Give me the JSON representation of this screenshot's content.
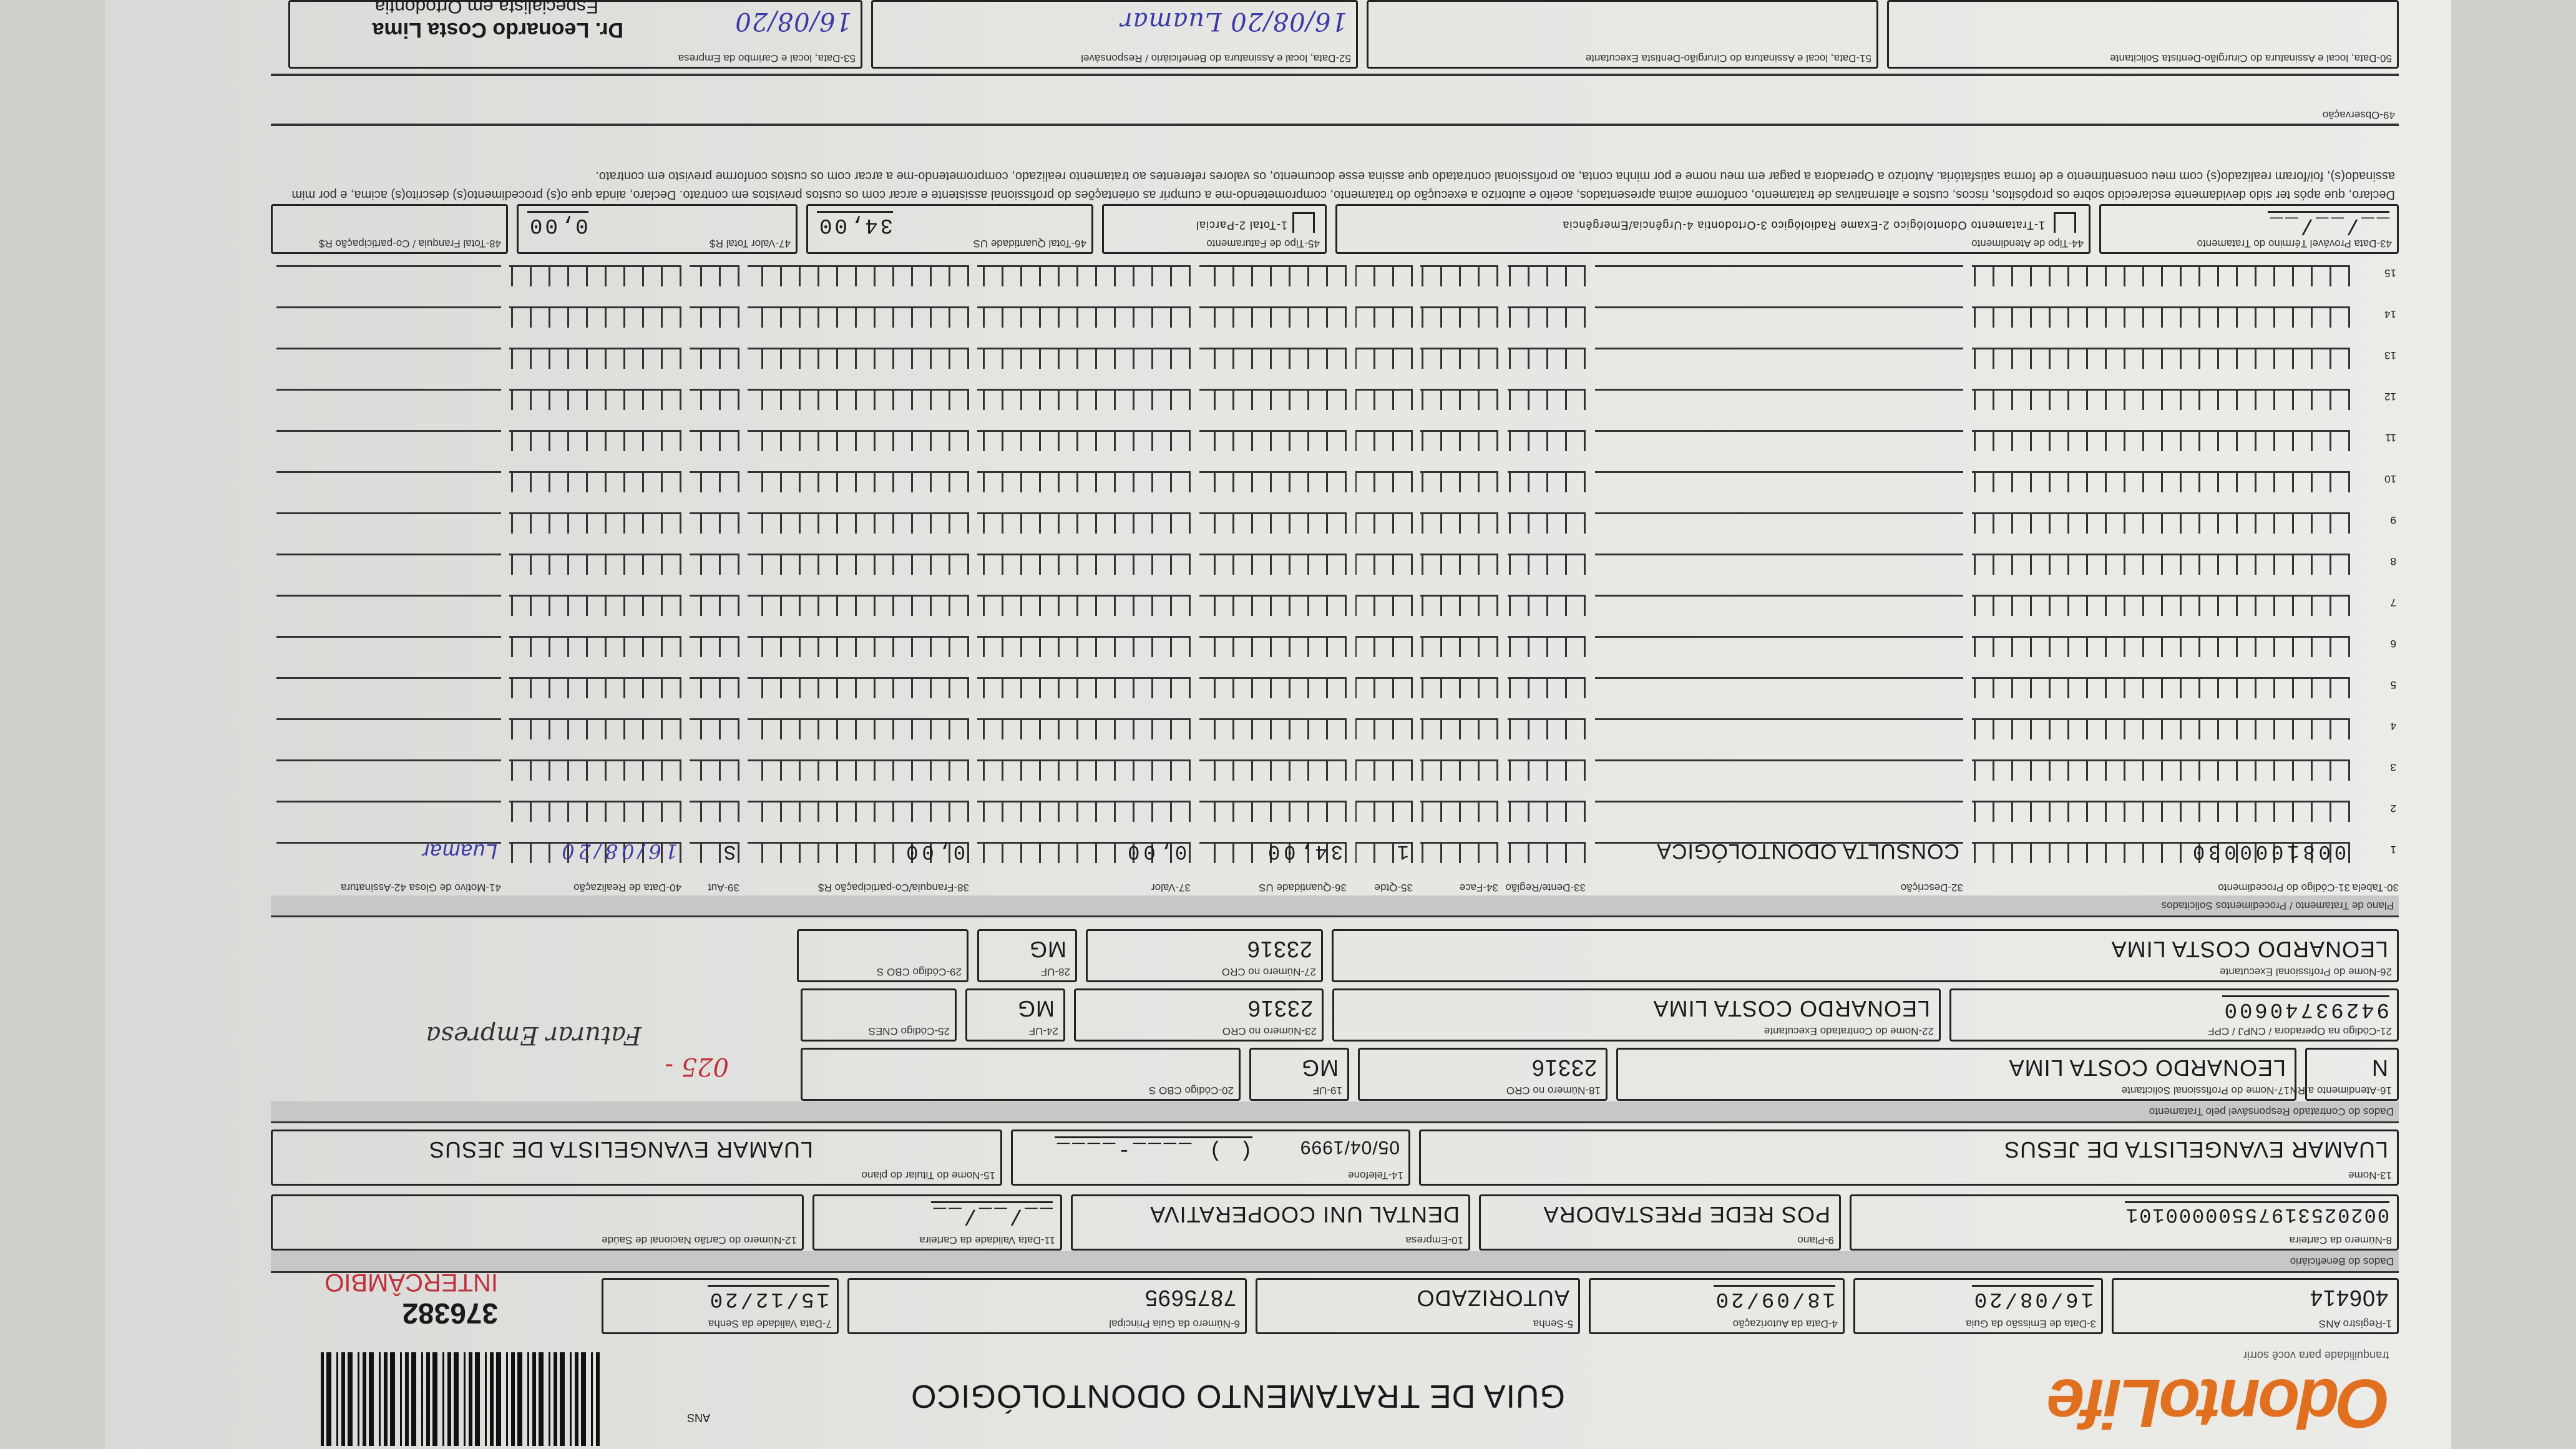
{
  "header": {
    "logo": "OdontoLife",
    "tagline": "tranquilidade para você sorrir",
    "title": "GUIA DE TRATAMENTO ODONTOLÓGICO",
    "ans_mark": "ANS",
    "guide_number": "376382",
    "intercambio": "INTERCÂMBIO",
    "brand_color": "#e0701f"
  },
  "guia": {
    "registro_ans": {
      "label": "1-Registro ANS",
      "value": "406414"
    },
    "data_emissao": {
      "label": "3-Data de Emissão da Guia",
      "value": "16/08/20"
    },
    "data_autorizacao": {
      "label": "4-Data da Autorização",
      "value": "18/09/20"
    },
    "senha": {
      "label": "5-Senha",
      "value": "AUTORIZADO"
    },
    "guia_principal": {
      "label": "6-Número da Guia Principal",
      "value": "7875695"
    },
    "validade_senha": {
      "label": "7-Data Validade da Senha",
      "value": "15/12/20"
    }
  },
  "beneficiario": {
    "section": "Dados do Beneficiário",
    "carteira": {
      "label": "8-Número da Carteira",
      "value": "00202531975500000101"
    },
    "plano": {
      "label": "9-Plano",
      "value": "POS REDE PRESTADORA"
    },
    "empresa": {
      "label": "10-Empresa",
      "value": "DENTAL UNI COOPERATIVA"
    },
    "validade_carteira": {
      "label": "11-Data Validade da Carteira",
      "value": "__/__/__"
    },
    "cns": {
      "label": "12-Número do Cartão Nacional de Saúde",
      "value": ""
    },
    "nome": {
      "label": "13-Nome",
      "value": "LUAMAR EVANGELISTA DE JESUS"
    },
    "nascimento": {
      "value": "05/04/1999"
    },
    "telefone": {
      "label": "14-Telefone",
      "value": "(  )  ____-____"
    },
    "titular": {
      "label": "15-Nome do Titular do plano",
      "value": "LUAMAR EVANGELISTA DE JESUS"
    }
  },
  "contratado": {
    "section": "Dados do Contratado Responsável pelo Tratamento",
    "rn": {
      "label": "16-Atendimento a RN",
      "value": "N"
    },
    "solicitante": {
      "label": "17-Nome do Profissional Solicitante",
      "value": "LEONARDO COSTA LIMA"
    },
    "cro_sol": {
      "label": "18-Número no CRO",
      "value": "23316"
    },
    "uf_sol": {
      "label": "19-UF",
      "value": "MG"
    },
    "cbo_sol": {
      "label": "20-Código CBO S",
      "value": ""
    },
    "codigo_operadora": {
      "label": "21-Código na Operadora / CNPJ / CPF",
      "value": "94293740600"
    },
    "contratado_exec": {
      "label": "22-Nome do Contratado Executante",
      "value": "LEONARDO COSTA LIMA"
    },
    "cro_contr": {
      "label": "23-Número no CRO",
      "value": "23316"
    },
    "uf_contr": {
      "label": "24-UF",
      "value": "MG"
    },
    "cnes": {
      "label": "25-Código CNES",
      "value": ""
    },
    "executante": {
      "label": "26-Nome do Profissional Executante",
      "value": "LEONARDO COSTA LIMA"
    },
    "cro_exec": {
      "label": "27-Número no CRO",
      "value": "23316"
    },
    "uf_exec": {
      "label": "28-UF",
      "value": "MG"
    },
    "cbo_exec": {
      "label": "29-Código CBO S",
      "value": ""
    },
    "handwritten_code": "025 -",
    "handwritten_note": "Faturar Empresa"
  },
  "plano": {
    "section": "Plano de Tratamento / Procedimentos Solicitados",
    "columns": [
      "30-Tabela",
      "31-Código do Procedimento",
      "32-Descrição",
      "33-Dente/Região",
      "34-Face",
      "35-Qtde",
      "36-Quantidade US",
      "37-Valor",
      "38-Franquia/Co-participação R$",
      "39-Aut",
      "40-Data de Realização",
      "41-Motivo de Glosa  42-Assinatura"
    ],
    "rows": [
      {
        "n": "1",
        "tabela": "",
        "codigo": "0081000030",
        "descricao": "CONSULTA ODONTOLÓGICA",
        "dente": "",
        "face": "",
        "qtde": "1",
        "us": "34,00",
        "valor": "0,00",
        "franquia": "0,00",
        "aut": "S",
        "data": "16/08/20",
        "assinatura": "Luamar"
      },
      {
        "n": "2"
      },
      {
        "n": "3"
      },
      {
        "n": "4"
      },
      {
        "n": "5"
      },
      {
        "n": "6"
      },
      {
        "n": "7"
      },
      {
        "n": "8"
      },
      {
        "n": "9"
      },
      {
        "n": "10"
      },
      {
        "n": "11"
      },
      {
        "n": "12"
      },
      {
        "n": "13"
      },
      {
        "n": "14"
      },
      {
        "n": "15"
      }
    ]
  },
  "totais": {
    "termino": {
      "label": "43-Data Provável Término do Tratamento",
      "value": "__/__/__"
    },
    "tipo_atendimento": {
      "label": "44-Tipo de Atendimento",
      "options": "1-Tratamento Odontológico  2-Exame Radiológico  3-Ortodontia  4-Urgência/Emergência",
      "value": ""
    },
    "tipo_faturamento": {
      "label": "45-Tipo de Faturamento",
      "options": "1-Total  2-Parcial",
      "value": ""
    },
    "total_us": {
      "label": "46-Total Quantidade US",
      "value": "34,00"
    },
    "valor_total": {
      "label": "47-Valor Total R$",
      "value": "0,00"
    },
    "total_franquia": {
      "label": "48-Total Franquia / Co-participação R$",
      "value": ""
    }
  },
  "declaracao": "Declaro, que após ter sido devidamente esclarecido sobre os propósitos, riscos, custos e alternativas de tratamento, conforme acima apresentados, aceito e autorizo a execução do tratamento, comprometendo-me a cumprir as orientações do profissional assistente e arcar com os custos previstos em contrato. Declaro, ainda que o(s) procedimento(s) descrito(s) acima, e por mim assinado(s), foi/foram realizado(s) com meu consentimento e de forma satisfatória. Autorizo a Operadora a pagar em meu nome e por minha conta, ao profissional contratado que assina esse documento, os valores referentes ao tratamento realizado, comprometendo-me a arcar com os custos conforme previsto em contrato.",
  "observacao": {
    "label": "49-Observação",
    "value": ""
  },
  "assinaturas": {
    "solicitante": "50-Data, local e Assinatura do Cirurgião-Dentista Solicitante",
    "executante": "51-Data, local e Assinatura do Cirurgião-Dentista Executante",
    "beneficiario": "52-Data, local e Assinatura do Beneficiário / Responsável",
    "beneficiario_hand": "16/08/20  Luamar",
    "empresa": "53-Data, local e Carimbo da Empresa",
    "empresa_hand": "16/08/20",
    "stamp_name": "Dr. Leonardo Costa Lima",
    "stamp_title": "Especialista em Ortodontia"
  }
}
